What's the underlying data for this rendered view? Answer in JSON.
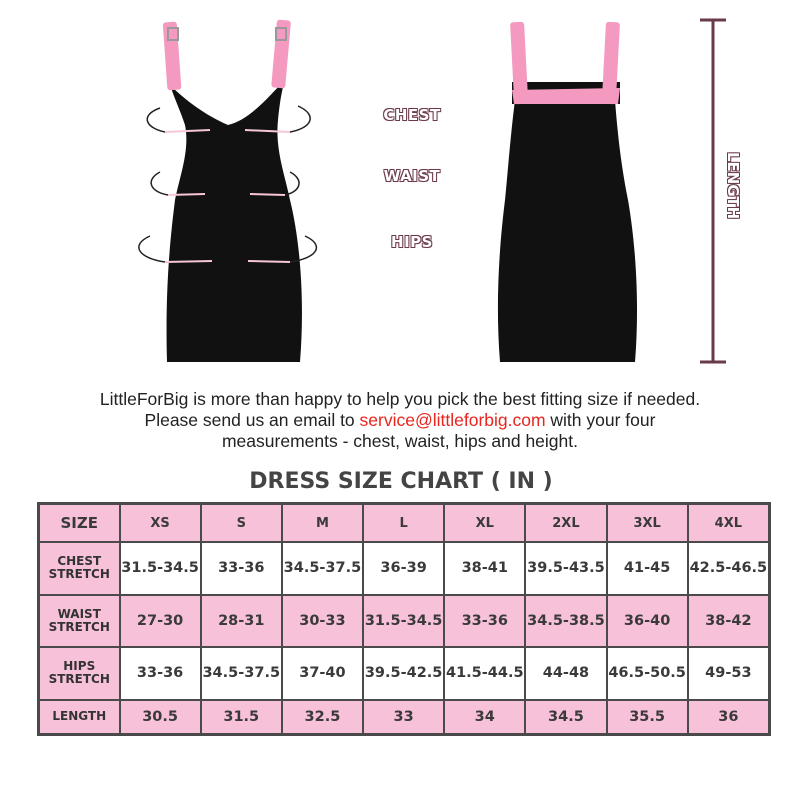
{
  "figure": {
    "measure_labels": {
      "chest": "CHEST",
      "waist": "WAIST",
      "hips": "HIPS",
      "length": "LENGTH"
    },
    "colors": {
      "accent_pink": "#f49ac1",
      "table_pink": "#f8c1da",
      "dress": "#111111",
      "email": "#e8251e"
    }
  },
  "message": {
    "line1": "LittleForBig is more than happy to help you pick the best fitting size if needed.",
    "line2_pre": "Please send us an email to ",
    "email": "service@littleforbig.com",
    "line2_post": " with your four",
    "line3": "measurements - chest, waist, hips and height."
  },
  "size_chart": {
    "title": "DRESS SIZE CHART ( IN )",
    "header": [
      "SIZE",
      "XS",
      "S",
      "M",
      "L",
      "XL",
      "2XL",
      "3XL",
      "4XL"
    ],
    "rows": [
      {
        "label": [
          "CHEST",
          "STRETCH"
        ],
        "values": [
          "31.5-34.5",
          "33-36",
          "34.5-37.5",
          "36-39",
          "38-41",
          "39.5-43.5",
          "41-45",
          "42.5-46.5"
        ]
      },
      {
        "label": [
          "WAIST",
          "STRETCH"
        ],
        "values": [
          "27-30",
          "28-31",
          "30-33",
          "31.5-34.5",
          "33-36",
          "34.5-38.5",
          "36-40",
          "38-42"
        ]
      },
      {
        "label": [
          "HIPS",
          "STRETCH"
        ],
        "values": [
          "33-36",
          "34.5-37.5",
          "37-40",
          "39.5-42.5",
          "41.5-44.5",
          "44-48",
          "46.5-50.5",
          "49-53"
        ]
      },
      {
        "label": [
          "LENGTH"
        ],
        "values": [
          "30.5",
          "31.5",
          "32.5",
          "33",
          "34",
          "34.5",
          "35.5",
          "36"
        ]
      }
    ]
  }
}
